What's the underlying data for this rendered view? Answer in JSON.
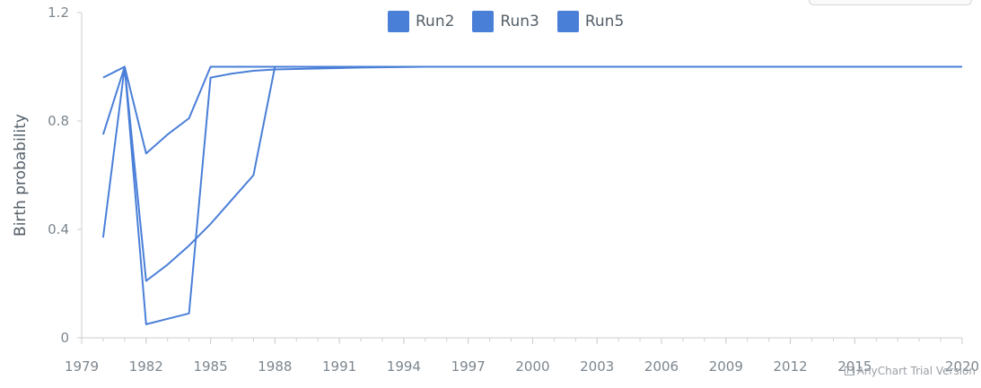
{
  "legend": [
    {
      "label": "Run2",
      "color": "#4a7fd8"
    },
    {
      "label": "Run3",
      "color": "#4a7fd8"
    },
    {
      "label": "Run5",
      "color": "#4a7fd8"
    }
  ],
  "watermark": "AnyChart Trial Version",
  "chart_data": {
    "type": "line",
    "ylabel": "Birth probability",
    "xlabel": "",
    "xlim": [
      1979,
      2020
    ],
    "ylim": [
      0,
      1.2
    ],
    "x_ticks": [
      "1979",
      "1982",
      "1985",
      "1988",
      "1991",
      "1994",
      "1997",
      "2000",
      "2003",
      "2006",
      "2009",
      "2012",
      "2015",
      "2020"
    ],
    "y_ticks": [
      "0",
      "0.4",
      "0.8",
      "1.2"
    ],
    "grid": false,
    "legend_position": "top-center",
    "series": [
      {
        "name": "Run2",
        "color": "#4a7fd8",
        "x": [
          1980,
          1981,
          1982,
          1983,
          1984,
          1985,
          1986,
          1987,
          1988,
          1992,
          1995,
          2000,
          2010,
          2020
        ],
        "y": [
          0.96,
          1.0,
          0.68,
          0.75,
          0.81,
          1.0,
          1.0,
          1.0,
          1.0,
          1.0,
          1.0,
          1.0,
          1.0,
          1.0
        ]
      },
      {
        "name": "Run3",
        "color": "#4a7fd8",
        "x": [
          1980,
          1981,
          1982,
          1983,
          1984,
          1985,
          1986,
          1987,
          1988,
          1992,
          1995,
          2000,
          2010,
          2020
        ],
        "y": [
          0.75,
          1.0,
          0.05,
          0.07,
          0.09,
          0.96,
          0.975,
          0.985,
          0.99,
          0.997,
          1.0,
          1.0,
          1.0,
          1.0
        ]
      },
      {
        "name": "Run5",
        "color": "#4a7fd8",
        "x": [
          1980,
          1981,
          1982,
          1983,
          1984,
          1985,
          1986,
          1987,
          1988,
          1992,
          1995,
          2000,
          2010,
          2020
        ],
        "y": [
          0.37,
          1.0,
          0.21,
          0.27,
          0.34,
          0.42,
          0.51,
          0.6,
          1.0,
          1.0,
          1.0,
          1.0,
          1.0,
          1.0
        ]
      }
    ]
  }
}
